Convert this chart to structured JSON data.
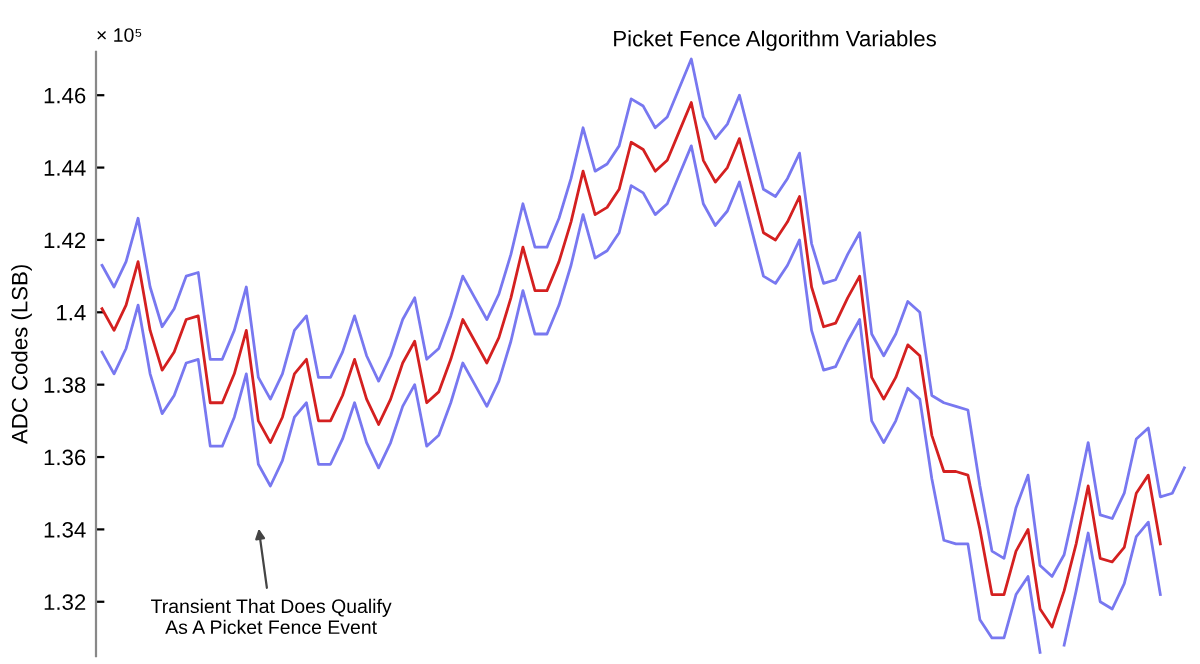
{
  "chart_data": {
    "type": "line",
    "title": "Picket Fence Algorithm Variables",
    "ylabel": "ADC Codes (LSB)",
    "annotations": [
      "× 10⁵",
      "Transient That Does Qualify\nAs A Picket Fence Event"
    ],
    "categories": [
      null,
      null,
      null,
      null,
      null,
      null,
      null,
      null,
      null,
      null,
      null,
      null,
      null,
      null,
      null,
      null,
      null,
      null,
      null,
      null,
      null,
      null,
      null,
      null,
      null,
      null,
      null,
      null,
      null,
      null,
      null,
      null,
      null,
      null,
      null,
      null,
      null,
      null,
      null,
      null,
      null,
      null,
      null,
      null,
      null,
      null,
      null,
      null,
      null,
      null,
      null,
      null,
      null,
      null,
      null,
      null,
      null,
      null,
      null,
      null,
      null,
      null,
      null,
      null,
      null,
      null,
      null,
      null,
      null,
      null,
      null,
      null,
      null,
      null,
      null,
      null,
      null,
      null,
      null,
      null,
      null,
      null,
      null,
      null,
      null,
      null,
      null,
      null,
      null,
      null,
      null
    ],
    "series": [
      {
        "color": "#7878f0",
        "values": [
          1.413,
          1.407,
          1.414,
          1.426,
          1.407,
          1.396,
          1.401,
          1.41,
          1.411,
          1.387,
          1.387,
          1.395,
          1.407,
          1.382,
          1.376,
          1.383,
          1.395,
          1.399,
          1.382,
          1.382,
          1.389,
          1.399,
          1.388,
          1.381,
          1.388,
          1.398,
          1.404,
          1.387,
          1.39,
          1.399,
          1.41,
          1.404,
          1.398,
          1.405,
          1.416,
          1.43,
          1.418,
          1.418,
          1.426,
          1.437,
          1.451,
          1.439,
          1.441,
          1.446,
          1.459,
          1.457,
          1.451,
          1.454,
          1.462,
          1.47,
          1.454,
          1.448,
          1.452,
          1.46,
          1.447,
          1.434,
          1.432,
          1.437,
          1.444,
          1.419,
          1.408,
          1.409,
          1.416,
          1.422,
          1.394,
          1.388,
          1.394,
          1.403,
          1.4,
          1.377,
          1.375,
          1.374,
          1.373,
          1.352,
          1.334,
          1.332,
          1.346,
          1.355,
          1.33,
          1.327,
          1.333,
          1.348,
          1.364,
          1.344,
          1.343,
          1.35,
          1.365,
          1.368,
          1.349,
          1.35,
          1.357
        ]
      },
      {
        "color": "#d42020",
        "values": [
          1.401,
          1.395,
          1.402,
          1.414,
          1.395,
          1.384,
          1.389,
          1.398,
          1.399,
          1.375,
          1.375,
          1.383,
          1.395,
          1.37,
          1.364,
          1.371,
          1.383,
          1.387,
          1.37,
          1.37,
          1.377,
          1.387,
          1.376,
          1.369,
          1.376,
          1.386,
          1.392,
          1.375,
          1.378,
          1.387,
          1.398,
          1.392,
          1.386,
          1.393,
          1.404,
          1.418,
          1.406,
          1.406,
          1.414,
          1.425,
          1.439,
          1.427,
          1.429,
          1.434,
          1.447,
          1.445,
          1.439,
          1.442,
          1.45,
          1.458,
          1.442,
          1.436,
          1.44,
          1.448,
          1.435,
          1.422,
          1.42,
          1.425,
          1.432,
          1.407,
          1.396,
          1.397,
          1.404,
          1.41,
          1.382,
          1.376,
          1.382,
          1.391,
          1.388,
          1.366,
          1.356,
          1.356,
          1.355,
          1.34,
          1.322,
          1.322,
          1.334,
          1.34,
          1.318,
          1.313,
          1.323,
          1.336,
          1.352,
          1.332,
          1.331,
          1.335,
          1.35,
          1.355,
          1.336,
          null,
          null
        ]
      },
      {
        "color": "#7878f0",
        "values": [
          1.389,
          1.383,
          1.39,
          1.402,
          1.383,
          1.372,
          1.377,
          1.386,
          1.387,
          1.363,
          1.363,
          1.371,
          1.383,
          1.358,
          1.352,
          1.359,
          1.371,
          1.375,
          1.358,
          1.358,
          1.365,
          1.375,
          1.364,
          1.357,
          1.364,
          1.374,
          1.38,
          1.363,
          1.366,
          1.375,
          1.386,
          1.38,
          1.374,
          1.381,
          1.392,
          1.406,
          1.394,
          1.394,
          1.402,
          1.413,
          1.427,
          1.415,
          1.417,
          1.422,
          1.435,
          1.433,
          1.427,
          1.43,
          1.438,
          1.446,
          1.43,
          1.424,
          1.428,
          1.436,
          1.423,
          1.41,
          1.408,
          1.413,
          1.42,
          1.395,
          1.384,
          1.385,
          1.392,
          1.398,
          1.37,
          1.364,
          1.37,
          1.379,
          1.376,
          1.354,
          1.337,
          1.336,
          1.336,
          1.315,
          1.31,
          1.31,
          1.322,
          1.327,
          1.306,
          null,
          1.308,
          1.323,
          1.339,
          1.32,
          1.318,
          1.325,
          1.338,
          1.342,
          1.322,
          null,
          null
        ]
      }
    ],
    "ylim": [
      1.305,
      1.472
    ],
    "yticks": [
      1.32,
      1.34,
      1.36,
      1.38,
      {
        "value": 1.4,
        "label": "1.4"
      },
      1.42,
      1.44,
      1.46
    ],
    "tick_labels": "y",
    "grid": false,
    "legend": false,
    "marker": "none",
    "line_style": "solid"
  }
}
